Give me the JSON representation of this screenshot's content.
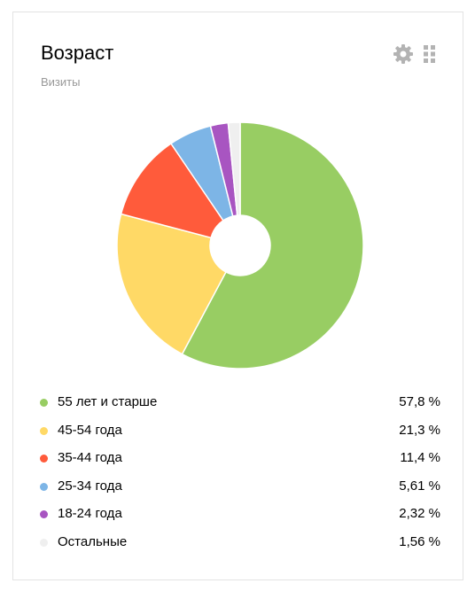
{
  "widget": {
    "title": "Возраст",
    "subtitle": "Визиты",
    "settings_icon": "gear-icon",
    "drag_icon": "drag-grip-icon"
  },
  "chart_data": {
    "type": "pie",
    "donut": true,
    "categories": [
      "55 лет и старше",
      "45-54 года",
      "35-44 года",
      "25-34 года",
      "18-24 года",
      "Остальные"
    ],
    "values": [
      57.8,
      21.3,
      11.4,
      5.61,
      2.32,
      1.56
    ],
    "value_labels": [
      "57,8 %",
      "21,3 %",
      "11,4 %",
      "5,61 %",
      "2,32 %",
      "1,56 %"
    ],
    "colors": [
      "#98cd63",
      "#ffd966",
      "#ff5b3b",
      "#7db5e6",
      "#a855c1",
      "#efefef"
    ]
  },
  "colors": {
    "border": "#e3e3e3",
    "icon": "#b3b3b3",
    "subtitle": "#999999"
  }
}
